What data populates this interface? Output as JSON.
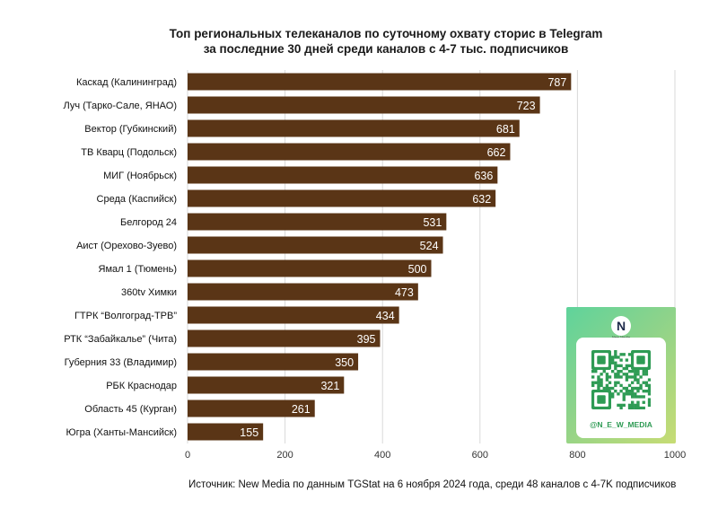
{
  "chart_data": {
    "type": "bar",
    "orientation": "horizontal",
    "title": "Топ региональных телеканалов по суточному охвату сторис в Telegram",
    "subtitle": "за последние 30 дней среди каналов с 4-7 тыс. подписчиков",
    "categories": [
      "Каскад (Калининград)",
      "Луч (Тарко-Сале, ЯНАО)",
      "Вектор (Губкинский)",
      "ТВ Кварц (Подольск)",
      "МИГ (Ноябрьск)",
      "Среда (Каспийск)",
      "Белгород 24",
      "Аист (Орехово-Зуево)",
      "Ямал 1 (Тюмень)",
      "360tv Химки",
      "ГТРК “Волгоград-ТРВ”",
      "РТК “Забайкалье” (Чита)",
      "Губерния 33 (Владимир)",
      "РБК Краснодар",
      "Область 45 (Курган)",
      "Югра (Ханты-Мансийск)"
    ],
    "values": [
      787,
      723,
      681,
      662,
      636,
      632,
      531,
      524,
      500,
      473,
      434,
      395,
      350,
      321,
      261,
      155
    ],
    "xlim": [
      0,
      1000
    ],
    "xticks": [
      0,
      200,
      400,
      600,
      800,
      1000
    ],
    "grid": "vertical",
    "bar_color": "#5a3516",
    "label_color": "#ffffff"
  },
  "source": "Источник: New Media по данным TGStat на 6 ноября 2024 года, среди 48 каналов с 4-7K подписчиков",
  "qr_card": {
    "logo": "N",
    "logo_caption": "New Media",
    "handle": "@N_E_W_MEDIA",
    "colors": {
      "gradient_start": "#5fd39b",
      "gradient_end": "#c7dc74",
      "qr": "#2e9b54"
    }
  }
}
